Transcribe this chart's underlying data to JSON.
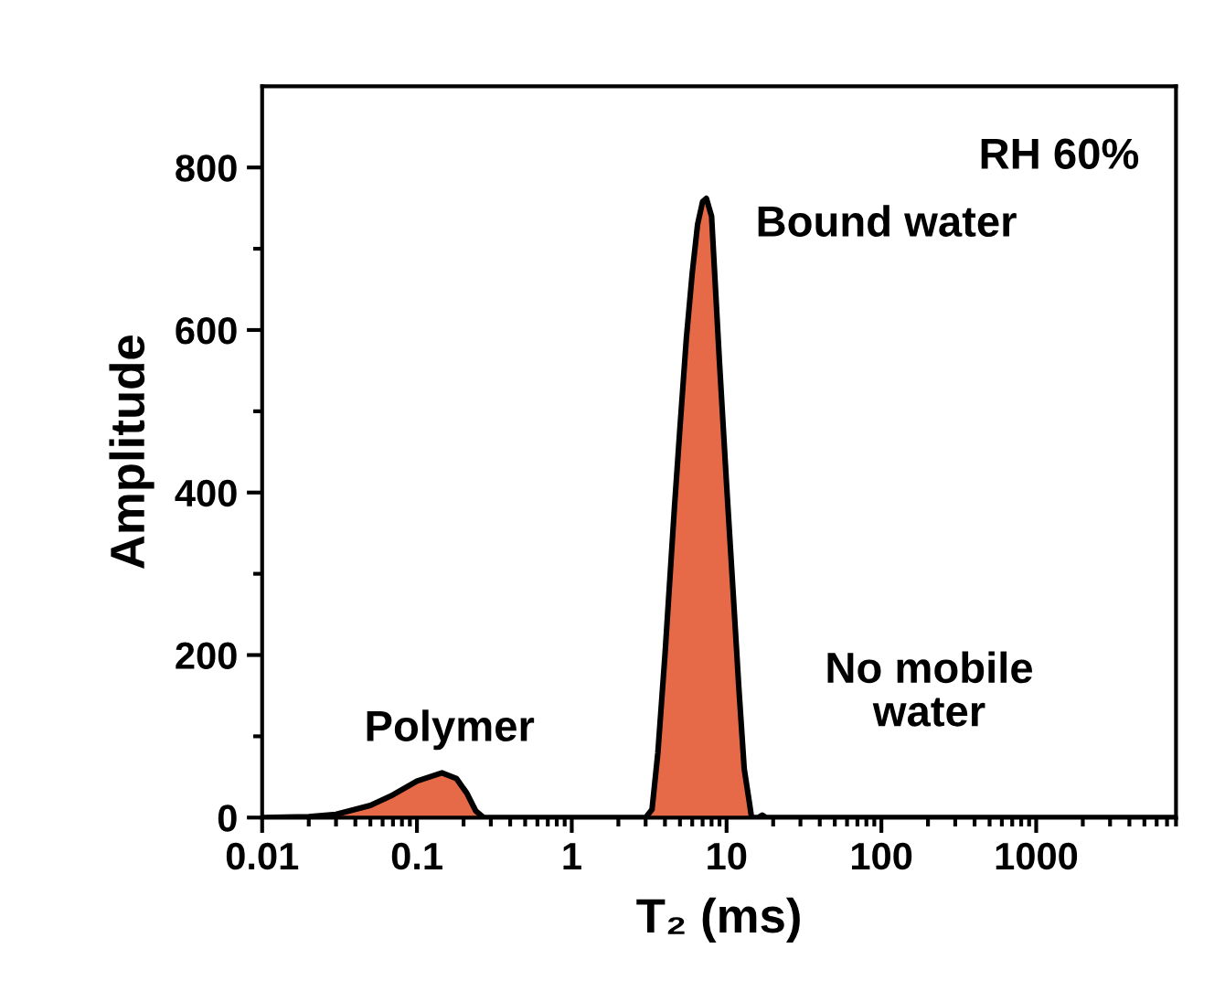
{
  "chart_data": {
    "type": "area",
    "xlabel": "T₂ (ms)",
    "ylabel": "Amplitude",
    "log": "x",
    "xlim": [
      0.01,
      8000
    ],
    "ylim": [
      0,
      900
    ],
    "xticks": [
      0.01,
      0.1,
      1,
      10,
      100,
      1000
    ],
    "yticks": [
      0,
      {
        "value": 100,
        "label": null
      },
      200,
      {
        "value": 300,
        "label": null
      },
      400,
      {
        "value": 500,
        "label": null
      },
      600,
      {
        "value": 700,
        "label": null
      },
      800
    ],
    "grid": false,
    "series": [
      {
        "color": "#e76a48",
        "x": [
          0.01,
          0.02,
          0.03,
          0.05,
          0.07,
          0.1,
          0.145,
          0.18,
          0.21,
          0.24,
          0.27,
          3.0,
          3.3,
          3.6,
          4.0,
          4.6,
          5.0,
          5.5,
          6.0,
          6.5,
          7.0,
          7.4,
          8.0,
          9.0,
          10,
          11,
          12,
          13,
          14,
          14.5,
          16,
          17,
          18,
          8000
        ],
        "values": [
          0,
          1,
          4,
          15,
          28,
          45,
          55,
          48,
          30,
          8,
          0,
          0,
          10,
          80,
          200,
          380,
          480,
          590,
          670,
          730,
          758,
          762,
          740,
          560,
          410,
          280,
          160,
          60,
          20,
          0,
          0,
          3,
          0,
          0
        ]
      }
    ],
    "annotations": [
      "RH 60%",
      "Bound water",
      "Polymer",
      "No mobile\nwater"
    ]
  }
}
